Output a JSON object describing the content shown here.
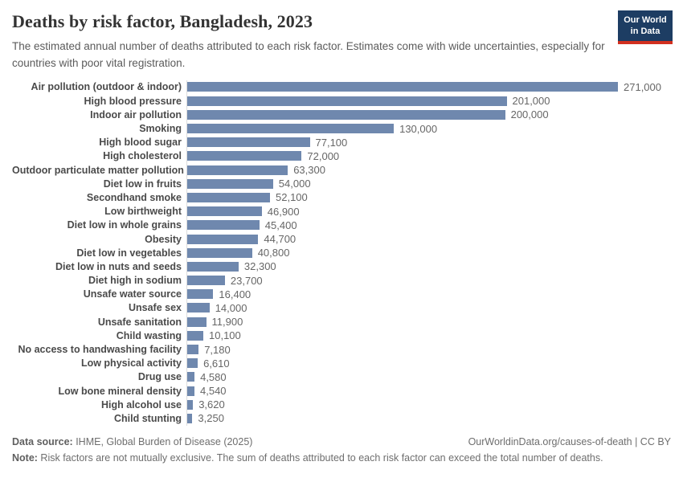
{
  "header": {
    "title": "Deaths by risk factor, Bangladesh, 2023",
    "subtitle": "The estimated annual number of deaths attributed to each risk factor. Estimates come with wide uncertainties, especially for countries with poor vital registration.",
    "logo": {
      "line1": "Our World",
      "line2": "in Data",
      "bg_color": "#1d3d63",
      "accent_color": "#d2301f"
    }
  },
  "chart_data": {
    "type": "bar",
    "orientation": "horizontal",
    "title": "Deaths by risk factor, Bangladesh, 2023",
    "xlabel": "",
    "ylabel": "",
    "xlim": [
      0,
      285000
    ],
    "grid": false,
    "legend": false,
    "bar_color": "#6f88ae",
    "categories": [
      "Air pollution (outdoor & indoor)",
      "High blood pressure",
      "Indoor air pollution",
      "Smoking",
      "High blood sugar",
      "High cholesterol",
      "Outdoor particulate matter pollution",
      "Diet low in fruits",
      "Secondhand smoke",
      "Low birthweight",
      "Diet low in whole grains",
      "Obesity",
      "Diet low in vegetables",
      "Diet low in nuts and seeds",
      "Diet high in sodium",
      "Unsafe water source",
      "Unsafe sex",
      "Unsafe sanitation",
      "Child wasting",
      "No access to handwashing facility",
      "Low physical activity",
      "Drug use",
      "Low bone mineral density",
      "High alcohol use",
      "Child stunting"
    ],
    "values": [
      271000,
      201000,
      200000,
      130000,
      77100,
      72000,
      63300,
      54000,
      52100,
      46900,
      45400,
      44700,
      40800,
      32300,
      23700,
      16400,
      14000,
      11900,
      10100,
      7180,
      6610,
      4580,
      4540,
      3620,
      3250
    ],
    "value_labels": [
      "271,000",
      "201,000",
      "200,000",
      "130,000",
      "77,100",
      "72,000",
      "63,300",
      "54,000",
      "52,100",
      "46,900",
      "45,400",
      "44,700",
      "40,800",
      "32,300",
      "23,700",
      "16,400",
      "14,000",
      "11,900",
      "10,100",
      "7,180",
      "6,610",
      "4,580",
      "4,540",
      "3,620",
      "3,250"
    ]
  },
  "footer": {
    "datasource_label": "Data source:",
    "datasource_text": " IHME, Global Burden of Disease (2025)",
    "rights": "OurWorldinData.org/causes-of-death | CC BY",
    "note_label": "Note:",
    "note_text": " Risk factors are not mutually exclusive. The sum of deaths attributed to each risk factor can exceed the total number of deaths."
  }
}
